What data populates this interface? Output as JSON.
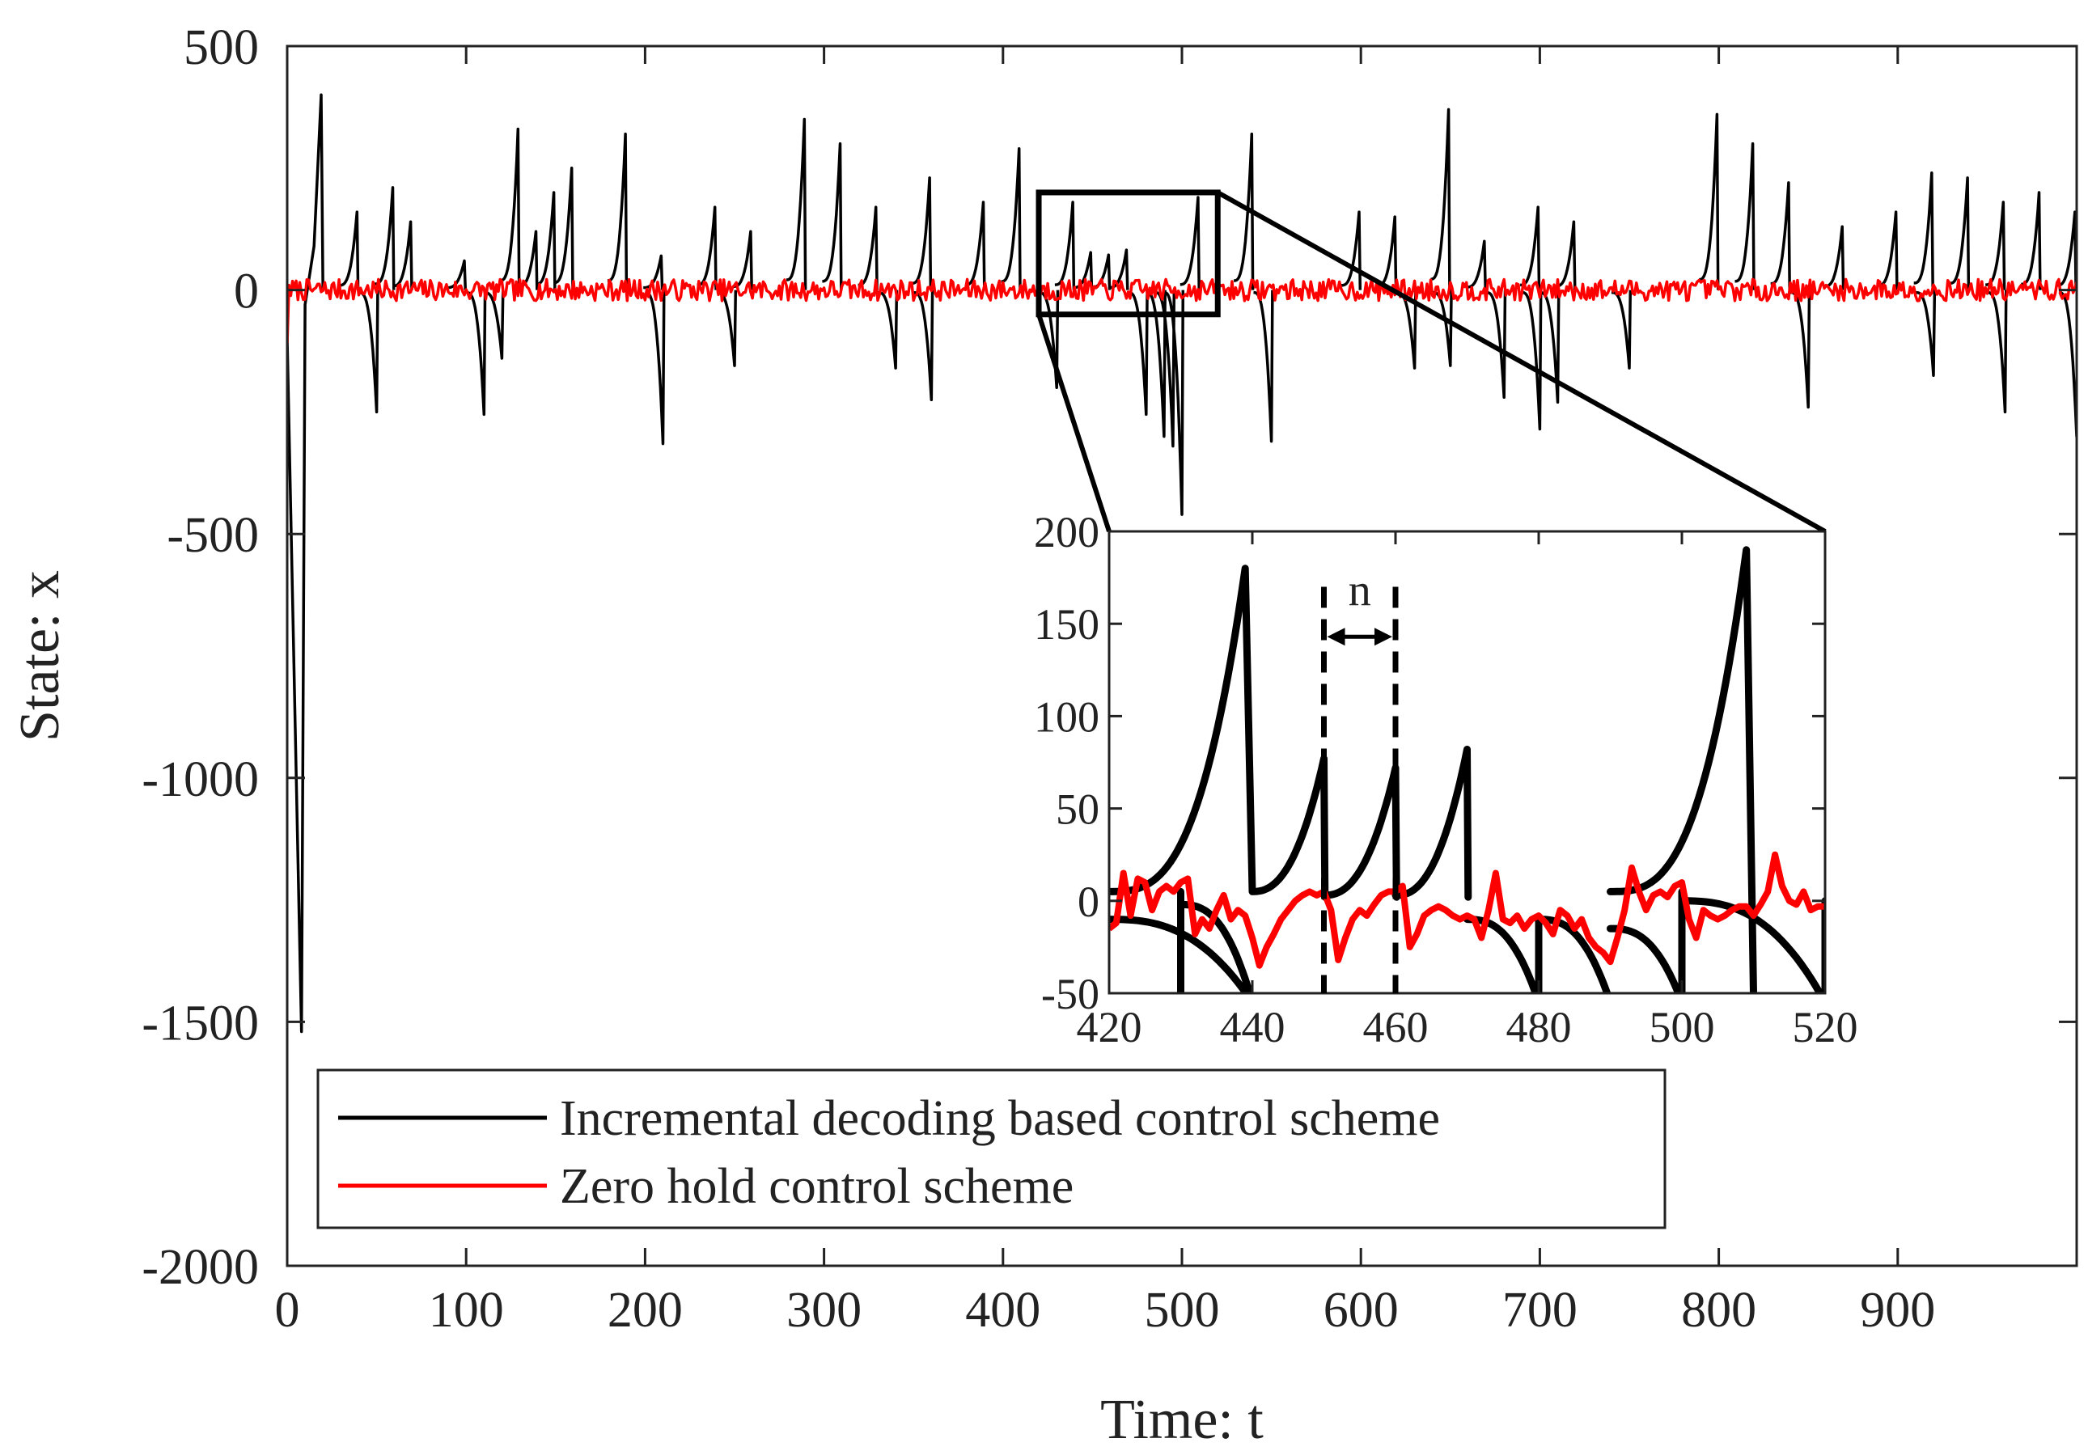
{
  "chart_data": [
    {
      "id": "main",
      "type": "line",
      "title": "",
      "xlabel": "Time: t",
      "ylabel": "State: x",
      "xlim": [
        0,
        1000
      ],
      "ylim": [
        -2000,
        500
      ],
      "xticks": [
        0,
        100,
        200,
        300,
        400,
        500,
        600,
        700,
        800,
        900
      ],
      "xtick_labels": [
        "0",
        "100",
        "200",
        "300",
        "400",
        "500",
        "600",
        "700",
        "800",
        "900"
      ],
      "yticks": [
        500,
        0,
        -500,
        -1000,
        -1500,
        -2000
      ],
      "ytick_labels": [
        "500",
        "0",
        "-500",
        "-1000",
        "-1500",
        "-2000"
      ],
      "grid": false,
      "legend_position": "bottom-left",
      "series": [
        {
          "name": "Incremental decoding based control scheme",
          "color": "#000000",
          "initial_transient": [
            [
              0,
              -100
            ],
            [
              8,
              -1520
            ],
            [
              10,
              -30
            ],
            [
              15,
              90
            ],
            [
              19,
              400
            ],
            [
              20,
              0
            ]
          ],
          "peaks": [
            [
              19,
              400
            ],
            [
              39,
              160
            ],
            [
              59,
              210
            ],
            [
              69,
              140
            ],
            [
              99,
              60
            ],
            [
              129,
              330
            ],
            [
              139,
              120
            ],
            [
              149,
              200
            ],
            [
              159,
              250
            ],
            [
              189,
              320
            ],
            [
              209,
              70
            ],
            [
              239,
              170
            ],
            [
              259,
              120
            ],
            [
              289,
              350
            ],
            [
              309,
              300
            ],
            [
              329,
              170
            ],
            [
              359,
              230
            ],
            [
              389,
              180
            ],
            [
              409,
              290
            ],
            [
              439,
              180
            ],
            [
              449,
              77
            ],
            [
              459,
              72
            ],
            [
              469,
              82
            ],
            [
              509,
              190
            ],
            [
              539,
              320
            ],
            [
              599,
              160
            ],
            [
              619,
              150
            ],
            [
              649,
              370
            ],
            [
              669,
              100
            ],
            [
              699,
              170
            ],
            [
              719,
              140
            ],
            [
              799,
              360
            ],
            [
              819,
              300
            ],
            [
              839,
              220
            ],
            [
              869,
              130
            ],
            [
              899,
              160
            ],
            [
              919,
              240
            ],
            [
              939,
              230
            ],
            [
              959,
              180
            ],
            [
              979,
              200
            ],
            [
              999,
              160
            ]
          ],
          "troughs": [
            [
              50,
              -250
            ],
            [
              110,
              -255
            ],
            [
              120,
              -140
            ],
            [
              210,
              -315
            ],
            [
              250,
              -155
            ],
            [
              340,
              -160
            ],
            [
              360,
              -225
            ],
            [
              430,
              -200
            ],
            [
              480,
              -255
            ],
            [
              490,
              -300
            ],
            [
              495,
              -320
            ],
            [
              500,
              -460
            ],
            [
              550,
              -310
            ],
            [
              630,
              -160
            ],
            [
              650,
              -155
            ],
            [
              680,
              -220
            ],
            [
              700,
              -285
            ],
            [
              710,
              -230
            ],
            [
              750,
              -160
            ],
            [
              850,
              -240
            ],
            [
              920,
              -175
            ],
            [
              960,
              -250
            ],
            [
              1000,
              -300
            ]
          ]
        },
        {
          "name": "Zero hold control scheme",
          "color": "#ff0000",
          "amplitude_range": [
            -40,
            40
          ]
        }
      ]
    },
    {
      "id": "inset",
      "type": "line",
      "title": "",
      "xlim": [
        420,
        520
      ],
      "ylim": [
        -50,
        200
      ],
      "xticks": [
        420,
        440,
        460,
        480,
        500,
        520
      ],
      "xtick_labels": [
        "420",
        "440",
        "460",
        "480",
        "500",
        "520"
      ],
      "yticks": [
        200,
        150,
        100,
        50,
        0,
        -50
      ],
      "ytick_labels": [
        "200",
        "150",
        "100",
        "50",
        "0",
        "-50"
      ],
      "zoom_box": {
        "x": [
          420,
          520
        ],
        "y": [
          -50,
          200
        ]
      },
      "annotation": {
        "label": "n",
        "x_start": 450,
        "x_end": 460
      },
      "series": [
        {
          "name": "Incremental decoding based control scheme",
          "color": "#000000",
          "up_segments": [
            {
              "t0": 440,
              "t1": 450,
              "start": 5,
              "peak": 77
            },
            {
              "t0": 450,
              "t1": 460,
              "start": 3,
              "peak": 72
            },
            {
              "t0": 460,
              "t1": 470,
              "start": 3,
              "peak": 82
            }
          ],
          "peak_segments": [
            {
              "t_start": 420,
              "t_peak": 439,
              "start": 5,
              "peak": 180,
              "drop_to": 5
            },
            {
              "t_start": 490,
              "t_peak": 509,
              "start": 5,
              "peak": 190,
              "drop_to": -50
            }
          ],
          "down_segments": [
            {
              "t0": 420,
              "t1": 440,
              "start": -10,
              "end": -55
            },
            {
              "t0": 430,
              "t1": 440,
              "start": -2,
              "end": -55
            },
            {
              "t0": 470,
              "t1": 480,
              "start": -10,
              "end": -55
            },
            {
              "t0": 480,
              "t1": 490,
              "start": -10,
              "end": -55
            },
            {
              "t0": 490,
              "t1": 500,
              "start": -15,
              "end": -55
            },
            {
              "t0": 500,
              "t1": 520,
              "start": 0,
              "end": -55
            }
          ],
          "vertical_jumps": [
            [
              430,
              -50,
              5
            ],
            [
              480,
              -50,
              -10
            ],
            [
              500,
              -50,
              5
            ],
            [
              520,
              -50,
              0
            ]
          ]
        },
        {
          "name": "Zero hold control scheme",
          "color": "#ff0000",
          "points": [
            [
              420,
              -15
            ],
            [
              421,
              -12
            ],
            [
              422,
              15
            ],
            [
              423,
              -8
            ],
            [
              424,
              12
            ],
            [
              425,
              10
            ],
            [
              426,
              -5
            ],
            [
              427,
              5
            ],
            [
              428,
              8
            ],
            [
              429,
              5
            ],
            [
              430,
              10
            ],
            [
              431,
              12
            ],
            [
              432,
              -18
            ],
            [
              433,
              -10
            ],
            [
              434,
              -15
            ],
            [
              435,
              -5
            ],
            [
              436,
              3
            ],
            [
              437,
              -10
            ],
            [
              438,
              -5
            ],
            [
              439,
              -8
            ],
            [
              440,
              -20
            ],
            [
              441,
              -35
            ],
            [
              442,
              -25
            ],
            [
              443,
              -18
            ],
            [
              444,
              -10
            ],
            [
              445,
              -5
            ],
            [
              446,
              0
            ],
            [
              447,
              3
            ],
            [
              448,
              5
            ],
            [
              449,
              3
            ],
            [
              450,
              5
            ],
            [
              451,
              -5
            ],
            [
              452,
              -32
            ],
            [
              453,
              -20
            ],
            [
              454,
              -10
            ],
            [
              455,
              -5
            ],
            [
              456,
              -8
            ],
            [
              457,
              -2
            ],
            [
              458,
              3
            ],
            [
              459,
              5
            ],
            [
              460,
              5
            ],
            [
              461,
              8
            ],
            [
              462,
              -25
            ],
            [
              463,
              -18
            ],
            [
              464,
              -8
            ],
            [
              465,
              -5
            ],
            [
              466,
              -3
            ],
            [
              467,
              -5
            ],
            [
              468,
              -8
            ],
            [
              469,
              -10
            ],
            [
              470,
              -8
            ],
            [
              471,
              -10
            ],
            [
              472,
              -20
            ],
            [
              473,
              -5
            ],
            [
              474,
              15
            ],
            [
              475,
              -10
            ],
            [
              476,
              -12
            ],
            [
              477,
              -8
            ],
            [
              478,
              -15
            ],
            [
              479,
              -10
            ],
            [
              480,
              -8
            ],
            [
              481,
              -12
            ],
            [
              482,
              -18
            ],
            [
              483,
              -5
            ],
            [
              484,
              -8
            ],
            [
              485,
              -15
            ],
            [
              486,
              -10
            ],
            [
              487,
              -20
            ],
            [
              488,
              -25
            ],
            [
              489,
              -28
            ],
            [
              490,
              -33
            ],
            [
              491,
              -20
            ],
            [
              492,
              -5
            ],
            [
              493,
              18
            ],
            [
              494,
              5
            ],
            [
              495,
              -5
            ],
            [
              496,
              3
            ],
            [
              497,
              5
            ],
            [
              498,
              2
            ],
            [
              499,
              8
            ],
            [
              500,
              10
            ],
            [
              501,
              -10
            ],
            [
              502,
              -20
            ],
            [
              503,
              -5
            ],
            [
              504,
              -8
            ],
            [
              505,
              -10
            ],
            [
              506,
              -8
            ],
            [
              507,
              -5
            ],
            [
              508,
              -3
            ],
            [
              509,
              -3
            ],
            [
              510,
              -8
            ],
            [
              511,
              -2
            ],
            [
              512,
              5
            ],
            [
              513,
              25
            ],
            [
              514,
              8
            ],
            [
              515,
              0
            ],
            [
              516,
              -2
            ],
            [
              517,
              5
            ],
            [
              518,
              -5
            ],
            [
              519,
              -3
            ],
            [
              520,
              -3
            ]
          ]
        }
      ]
    }
  ]
}
